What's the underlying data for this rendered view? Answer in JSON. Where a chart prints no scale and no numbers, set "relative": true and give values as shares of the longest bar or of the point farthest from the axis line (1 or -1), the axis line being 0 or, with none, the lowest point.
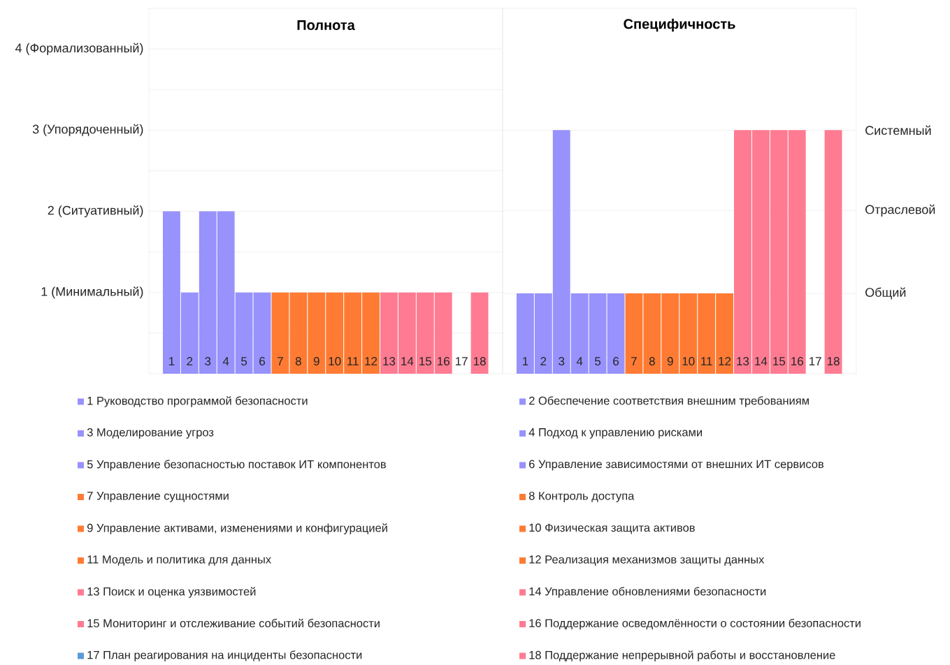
{
  "chart_data": [
    {
      "type": "bar",
      "title": "Полнота",
      "categories": [
        "1",
        "2",
        "3",
        "4",
        "5",
        "6",
        "7",
        "8",
        "9",
        "10",
        "11",
        "12",
        "13",
        "14",
        "15",
        "16",
        "17",
        "18"
      ],
      "values": [
        2,
        1,
        2,
        2,
        1,
        1,
        1,
        1,
        1,
        1,
        1,
        1,
        1,
        1,
        1,
        1,
        null,
        1
      ],
      "colors": [
        "#9892fd",
        "#9892fd",
        "#9892fd",
        "#9892fd",
        "#9892fd",
        "#9892fd",
        "#ff7b33",
        "#ff7b33",
        "#ff7b33",
        "#ff7b33",
        "#ff7b33",
        "#ff7b33",
        "#ff7b92",
        "#ff7b92",
        "#ff7b92",
        "#ff7b92",
        "#5b9bd5",
        "#ff7b92"
      ],
      "ylim": [
        0,
        4.5
      ],
      "yticks": [
        {
          "value": 0.5,
          "label": null
        },
        {
          "value": 1,
          "label": "1 (Минимальный)"
        },
        {
          "value": 1.5,
          "label": null
        },
        {
          "value": 2,
          "label": "2 (Ситуативный)"
        },
        {
          "value": 2.5,
          "label": null
        },
        {
          "value": 3,
          "label": "3 (Упорядоченный)"
        },
        {
          "value": 3.5,
          "label": null
        },
        {
          "value": 4,
          "label": "4 (Формализованный)"
        }
      ],
      "grid": "y",
      "annotations": [
        "1 Руководство программой безопасности",
        "2 Обеспечение соответствия внешним требованиям",
        "3 Моделирование угроз",
        "4 Подход к управлению рисками",
        "5 Управление безопасностью поставок ИТ компонентов",
        "6 Управление зависимостями от внешних ИТ сервисов",
        "7 Управление сущностями",
        "8 Контроль доступа",
        "9 Управление активами, изменениями и конфигурацией",
        "10 Физическая защита активов",
        "11 Модель и политика для данных",
        "12 Реализация механизмов защиты данных",
        "13 Поиск и оценка уязвимостей",
        "14 Управление обновлениями безопасности",
        "15 Мониторинг и отслеживание событий безопасности",
        "16 Поддержание осведомлённости о состоянии безопасности",
        "17 План реагирования на инциденты безопасности",
        "18 Поддержание непрерывной работы и восстановление"
      ]
    },
    {
      "type": "bar",
      "title": "Специфичность",
      "categories": [
        "1",
        "2",
        "3",
        "4",
        "5",
        "6",
        "7",
        "8",
        "9",
        "10",
        "11",
        "12",
        "13",
        "14",
        "15",
        "16",
        "17",
        "18"
      ],
      "values": [
        0.33,
        0.33,
        1,
        0.33,
        0.33,
        0.33,
        0.33,
        0.33,
        0.33,
        0.33,
        0.33,
        0.33,
        1,
        1,
        1,
        1,
        null,
        1
      ],
      "relative": true,
      "colors": [
        "#9892fd",
        "#9892fd",
        "#9892fd",
        "#9892fd",
        "#9892fd",
        "#9892fd",
        "#ff7b33",
        "#ff7b33",
        "#ff7b33",
        "#ff7b33",
        "#ff7b33",
        "#ff7b33",
        "#ff7b92",
        "#ff7b92",
        "#ff7b92",
        "#ff7b92",
        "#5b9bd5",
        "#ff7b92"
      ],
      "ref_lines": [
        {
          "axis": "y",
          "value": 0.33,
          "label": "Общий",
          "color": "#d9d9d9"
        },
        {
          "axis": "y",
          "value": 0.67,
          "label": "Отраслевой",
          "color": "#d9d9d9"
        },
        {
          "axis": "y",
          "value": 1,
          "label": "Системный",
          "color": "#d9d9d9"
        }
      ]
    }
  ]
}
